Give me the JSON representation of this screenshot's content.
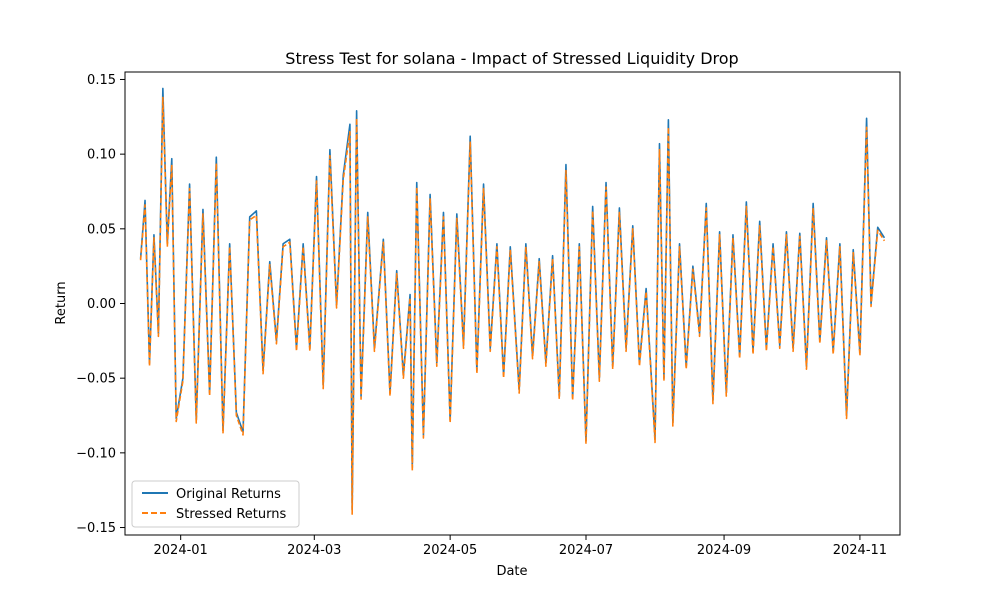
{
  "chart_data": {
    "type": "line",
    "title": "Stress Test for solana - Impact of Stressed Liquidity Drop",
    "xlabel": "Date",
    "ylabel": "Return",
    "x_range": [
      "2023-12-07",
      "2024-11-19"
    ],
    "ylim": [
      -0.155,
      0.155
    ],
    "grid": false,
    "legend_position": "lower-left",
    "x_ticks": [
      {
        "date": "2024-01-01",
        "label": "2024-01"
      },
      {
        "date": "2024-03-01",
        "label": "2024-03"
      },
      {
        "date": "2024-05-01",
        "label": "2024-05"
      },
      {
        "date": "2024-07-01",
        "label": "2024-07"
      },
      {
        "date": "2024-09-01",
        "label": "2024-09"
      },
      {
        "date": "2024-11-01",
        "label": "2024-11"
      }
    ],
    "y_ticks": [
      {
        "value": 0.15,
        "label": "0.15"
      },
      {
        "value": 0.1,
        "label": "0.10"
      },
      {
        "value": 0.05,
        "label": "0.05"
      },
      {
        "value": 0.0,
        "label": "0.00"
      },
      {
        "value": -0.05,
        "label": "−0.05"
      },
      {
        "value": -0.1,
        "label": "−0.10"
      },
      {
        "value": -0.15,
        "label": "−0.15"
      }
    ],
    "x": [
      "2023-12-14",
      "2023-12-16",
      "2023-12-18",
      "2023-12-20",
      "2023-12-22",
      "2023-12-24",
      "2023-12-26",
      "2023-12-28",
      "2023-12-30",
      "2024-01-02",
      "2024-01-05",
      "2024-01-08",
      "2024-01-11",
      "2024-01-14",
      "2024-01-17",
      "2024-01-20",
      "2024-01-23",
      "2024-01-26",
      "2024-01-29",
      "2024-02-01",
      "2024-02-04",
      "2024-02-07",
      "2024-02-10",
      "2024-02-13",
      "2024-02-16",
      "2024-02-19",
      "2024-02-22",
      "2024-02-25",
      "2024-02-28",
      "2024-03-02",
      "2024-03-05",
      "2024-03-08",
      "2024-03-11",
      "2024-03-14",
      "2024-03-17",
      "2024-03-18",
      "2024-03-20",
      "2024-03-22",
      "2024-03-25",
      "2024-03-28",
      "2024-04-01",
      "2024-04-04",
      "2024-04-07",
      "2024-04-10",
      "2024-04-13",
      "2024-04-14",
      "2024-04-16",
      "2024-04-19",
      "2024-04-22",
      "2024-04-25",
      "2024-04-28",
      "2024-05-01",
      "2024-05-04",
      "2024-05-07",
      "2024-05-10",
      "2024-05-13",
      "2024-05-16",
      "2024-05-19",
      "2024-05-22",
      "2024-05-25",
      "2024-05-28",
      "2024-06-01",
      "2024-06-04",
      "2024-06-07",
      "2024-06-10",
      "2024-06-13",
      "2024-06-16",
      "2024-06-19",
      "2024-06-22",
      "2024-06-25",
      "2024-06-28",
      "2024-07-01",
      "2024-07-04",
      "2024-07-07",
      "2024-07-10",
      "2024-07-13",
      "2024-07-16",
      "2024-07-19",
      "2024-07-22",
      "2024-07-25",
      "2024-07-28",
      "2024-08-01",
      "2024-08-03",
      "2024-08-05",
      "2024-08-07",
      "2024-08-09",
      "2024-08-12",
      "2024-08-15",
      "2024-08-18",
      "2024-08-21",
      "2024-08-24",
      "2024-08-27",
      "2024-08-30",
      "2024-09-02",
      "2024-09-05",
      "2024-09-08",
      "2024-09-11",
      "2024-09-14",
      "2024-09-17",
      "2024-09-20",
      "2024-09-23",
      "2024-09-26",
      "2024-09-29",
      "2024-10-02",
      "2024-10-05",
      "2024-10-08",
      "2024-10-11",
      "2024-10-14",
      "2024-10-17",
      "2024-10-20",
      "2024-10-23",
      "2024-10-26",
      "2024-10-29",
      "2024-11-01",
      "2024-11-04",
      "2024-11-06",
      "2024-11-09",
      "2024-11-12"
    ],
    "series": [
      {
        "name": "Original Returns",
        "color": "#1f77b4",
        "style": "solid",
        "values": [
          0.03,
          0.069,
          -0.04,
          0.046,
          -0.02,
          0.144,
          0.04,
          0.097,
          -0.077,
          -0.05,
          0.08,
          -0.078,
          0.063,
          -0.06,
          0.098,
          -0.085,
          0.04,
          -0.073,
          -0.086,
          0.058,
          0.062,
          -0.045,
          0.028,
          -0.025,
          0.04,
          0.043,
          -0.03,
          0.04,
          -0.03,
          0.085,
          -0.055,
          0.103,
          -0.001,
          0.086,
          0.12,
          -0.138,
          0.129,
          -0.062,
          0.061,
          -0.03,
          0.043,
          -0.06,
          0.022,
          -0.048,
          0.006,
          -0.11,
          0.081,
          -0.088,
          0.073,
          -0.04,
          0.061,
          -0.078,
          0.06,
          -0.028,
          0.112,
          -0.045,
          0.08,
          -0.03,
          0.04,
          -0.048,
          0.038,
          -0.058,
          0.04,
          -0.035,
          0.03,
          -0.04,
          0.032,
          -0.062,
          0.093,
          -0.063,
          0.04,
          -0.092,
          0.065,
          -0.05,
          0.081,
          -0.042,
          0.064,
          -0.03,
          0.052,
          -0.04,
          0.01,
          -0.091,
          0.107,
          -0.05,
          0.123,
          -0.08,
          0.04,
          -0.042,
          0.025,
          -0.02,
          0.067,
          -0.065,
          0.048,
          -0.06,
          0.046,
          -0.035,
          0.068,
          -0.032,
          0.055,
          -0.03,
          0.04,
          -0.028,
          0.048,
          -0.03,
          0.047,
          -0.042,
          0.067,
          -0.025,
          0.044,
          -0.032,
          0.04,
          -0.075,
          0.036,
          -0.033,
          0.124,
          -0.0,
          0.051,
          0.044
        ]
      },
      {
        "name": "Stressed Returns",
        "color": "#ff7f0e",
        "style": "dashed",
        "values": [
          0.029,
          0.066,
          -0.042,
          0.044,
          -0.022,
          0.138,
          0.038,
          0.093,
          -0.079,
          -0.052,
          0.077,
          -0.08,
          0.06,
          -0.062,
          0.094,
          -0.087,
          0.038,
          -0.075,
          -0.088,
          0.056,
          0.059,
          -0.047,
          0.026,
          -0.027,
          0.038,
          0.041,
          -0.032,
          0.038,
          -0.032,
          0.082,
          -0.057,
          0.099,
          -0.003,
          0.083,
          0.115,
          -0.141,
          0.124,
          -0.064,
          0.058,
          -0.032,
          0.041,
          -0.062,
          0.02,
          -0.05,
          0.004,
          -0.112,
          0.078,
          -0.09,
          0.07,
          -0.042,
          0.058,
          -0.08,
          0.057,
          -0.03,
          0.108,
          -0.047,
          0.077,
          -0.032,
          0.038,
          -0.05,
          0.036,
          -0.06,
          0.038,
          -0.037,
          0.028,
          -0.042,
          0.03,
          -0.064,
          0.089,
          -0.065,
          0.038,
          -0.094,
          0.062,
          -0.052,
          0.078,
          -0.044,
          0.061,
          -0.032,
          0.05,
          -0.042,
          0.008,
          -0.093,
          0.103,
          -0.052,
          0.118,
          -0.082,
          0.038,
          -0.044,
          0.023,
          -0.022,
          0.064,
          -0.067,
          0.046,
          -0.062,
          0.044,
          -0.037,
          0.065,
          -0.034,
          0.052,
          -0.032,
          0.038,
          -0.03,
          0.046,
          -0.032,
          0.045,
          -0.044,
          0.064,
          -0.027,
          0.042,
          -0.034,
          0.038,
          -0.077,
          0.034,
          -0.035,
          0.118,
          -0.002,
          0.049,
          0.042
        ]
      }
    ]
  }
}
